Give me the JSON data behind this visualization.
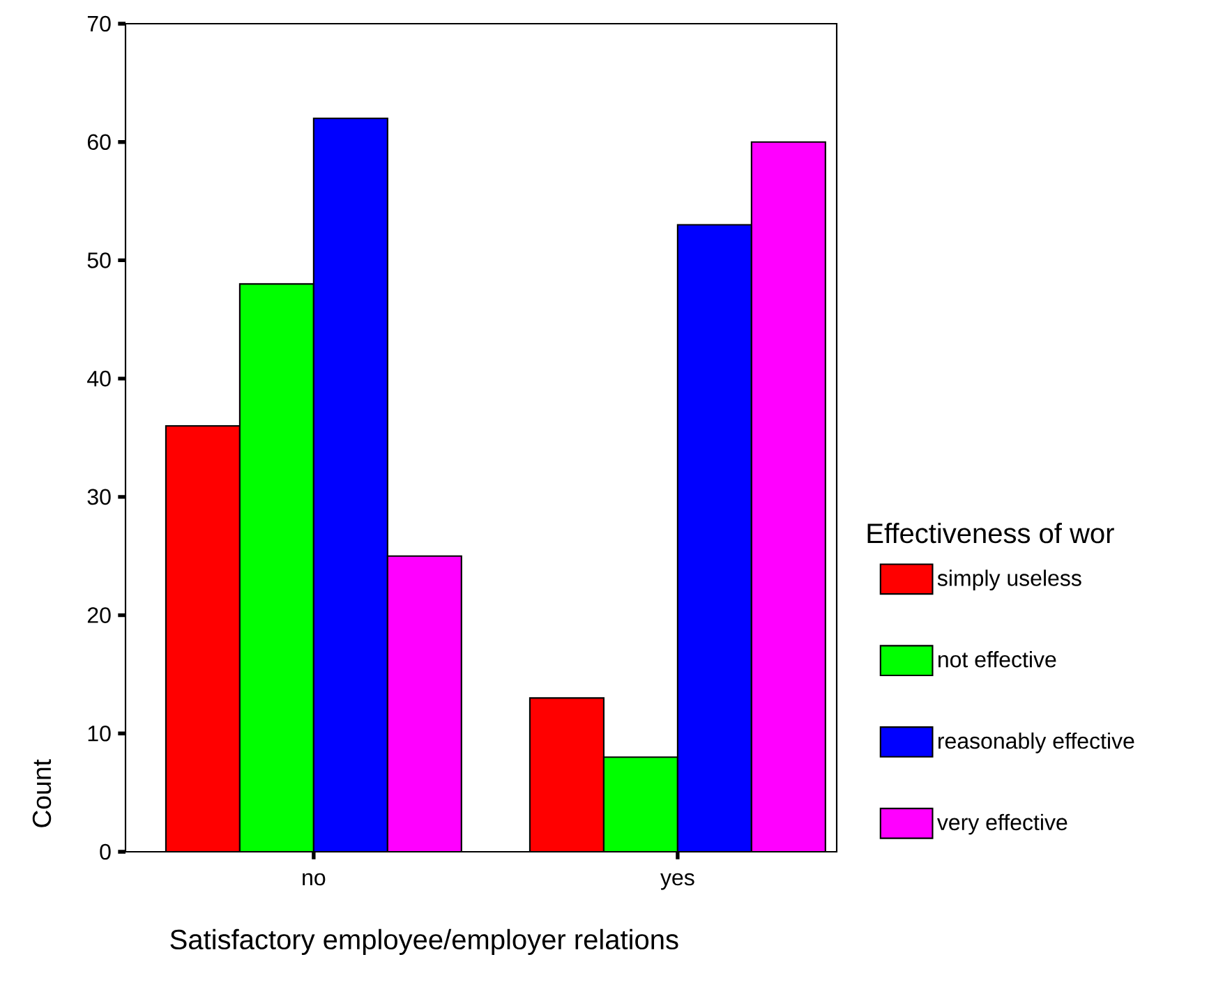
{
  "chart_data": {
    "type": "bar",
    "xlabel": "Satisfactory employee/employer relations",
    "ylabel": "Count",
    "legend_title": "Effectiveness of wor",
    "categories": [
      "no",
      "yes"
    ],
    "series": [
      {
        "name": "simply useless",
        "color": "#ff0000",
        "values": [
          36,
          13
        ]
      },
      {
        "name": "not effective",
        "color": "#00ff00",
        "values": [
          48,
          8
        ]
      },
      {
        "name": "reasonably effective",
        "color": "#0000ff",
        "values": [
          62,
          53
        ]
      },
      {
        "name": "very effective",
        "color": "#ff00ff",
        "values": [
          25,
          60
        ]
      }
    ],
    "ylim": [
      0,
      70
    ],
    "yticks": [
      0,
      10,
      20,
      30,
      40,
      50,
      60,
      70
    ],
    "grid": false,
    "legend": "right"
  }
}
